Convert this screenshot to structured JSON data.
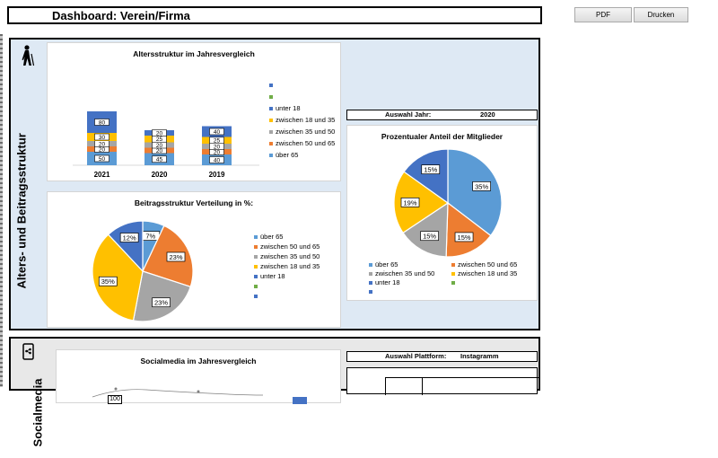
{
  "header": {
    "title": "Dashboard: Verein/Firma",
    "pdf_label": "PDF",
    "print_label": "Drucken"
  },
  "section1": {
    "title": "Alters- und Beitragsstruktur",
    "icon": "elderly-person-icon"
  },
  "section2": {
    "title": "Socialmedia",
    "icon": "smartphone-icon"
  },
  "colors": {
    "ueber65": "#5b9bd5",
    "z50_65": "#ed7d31",
    "z35_50": "#a5a5a5",
    "z18_35": "#ffc000",
    "unter18": "#4472c4",
    "green": "#70ad47",
    "panel_bg": "#dee9f4"
  },
  "age_chart": {
    "title": "Altersstruktur im Jahresvergleich",
    "legend": [
      "",
      "",
      "unter 18",
      "zwischen 18 und 35",
      "zwischen 35 und 50",
      "zwischen 50 und 65",
      "über 65"
    ],
    "chart_data": {
      "type": "bar",
      "categories": [
        "2021",
        "2020",
        "2019"
      ],
      "series": [
        {
          "name": "über 65",
          "values": [
            50,
            45,
            40
          ]
        },
        {
          "name": "zwischen 50 und 65",
          "values": [
            20,
            20,
            20
          ]
        },
        {
          "name": "zwischen 35 und 50",
          "values": [
            20,
            20,
            20
          ]
        },
        {
          "name": "zwischen 18 und 35",
          "values": [
            30,
            25,
            25
          ]
        },
        {
          "name": "unter 18",
          "values": [
            80,
            20,
            40
          ]
        }
      ]
    }
  },
  "selection_year": {
    "label": "Auswahl Jahr:",
    "value": "2020"
  },
  "member_pie": {
    "title": "Prozentualer Anteil der Mitglieder",
    "legend": [
      "über 65",
      "zwischen 50 und 65",
      "zwischen 35 und 50",
      "zwischen 18 und 35",
      "unter 18",
      "",
      ""
    ],
    "chart_data": {
      "type": "pie",
      "labels": [
        "über 65",
        "zwischen 50 und 65",
        "zwischen 35 und 50",
        "zwischen 18 und 35",
        "unter 18"
      ],
      "values": [
        35,
        15,
        15,
        19,
        15
      ],
      "data_labels": [
        "35%",
        "15%",
        "15%",
        "19%",
        "15%"
      ]
    }
  },
  "fee_pie": {
    "title": "Beitragsstruktur Verteilung in %:",
    "legend": [
      "über 65",
      "zwischen 50 und 65",
      "zwischen 35 und 50",
      "zwischen 18 und 35",
      "unter 18",
      "",
      ""
    ],
    "chart_data": {
      "type": "pie",
      "labels": [
        "über 65",
        "zwischen 50 und 65",
        "zwischen 35 und 50",
        "zwischen 18 und 35",
        "unter 18"
      ],
      "values": [
        7,
        23,
        23,
        35,
        12
      ],
      "data_labels": [
        "7%",
        "23%",
        "23%",
        "35%",
        "12%"
      ]
    }
  },
  "social_chart": {
    "title": "Socialmedia im Jahresvergleich",
    "partial_label": "100"
  },
  "selection_platform": {
    "label": "Auswahl Plattform:",
    "value": "Instagramm"
  }
}
